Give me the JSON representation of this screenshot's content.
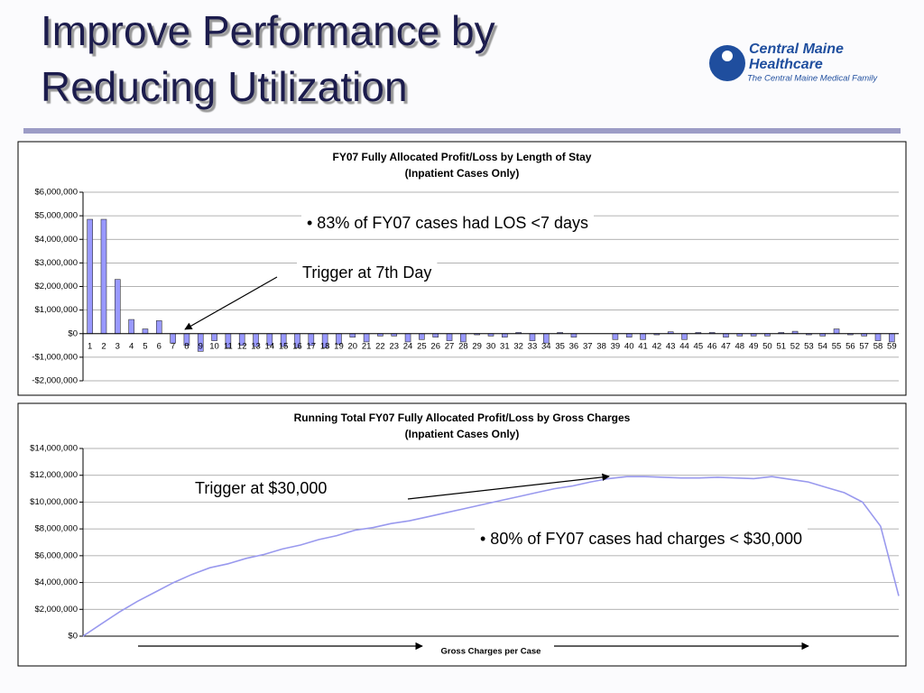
{
  "slide": {
    "title_lines": [
      "Improve Performance by",
      "Reducing Utilization"
    ],
    "logo": {
      "name_lines": [
        "Central Maine",
        "Healthcare"
      ],
      "tagline": "The Central Maine Medical Family"
    }
  },
  "chart_data": [
    {
      "type": "bar",
      "title": "FY07 Fully Allocated Profit/Loss by Length of Stay",
      "subtitle": "(Inpatient Cases Only)",
      "categories": [
        "1",
        "2",
        "3",
        "4",
        "5",
        "6",
        "7",
        "8",
        "9",
        "10",
        "11",
        "12",
        "13",
        "14",
        "15",
        "16",
        "17",
        "18",
        "19",
        "20",
        "21",
        "22",
        "23",
        "24",
        "25",
        "26",
        "27",
        "28",
        "29",
        "30",
        "31",
        "32",
        "33",
        "34",
        "35",
        "36",
        "37",
        "38",
        "39",
        "40",
        "41",
        "42",
        "43",
        "44",
        "45",
        "46",
        "47",
        "48",
        "49",
        "50",
        "51",
        "52",
        "53",
        "54",
        "55",
        "56",
        "57",
        "58",
        "59"
      ],
      "values": [
        4850000,
        4850000,
        2300000,
        600000,
        200000,
        550000,
        -400000,
        -500000,
        -750000,
        -300000,
        -600000,
        -500000,
        -550000,
        -500000,
        -550000,
        -600000,
        -500000,
        -600000,
        -450000,
        -150000,
        -350000,
        -100000,
        -100000,
        -350000,
        -250000,
        -150000,
        -300000,
        -350000,
        -50000,
        -100000,
        -150000,
        50000,
        -300000,
        -400000,
        50000,
        -150000,
        0,
        0,
        -250000,
        -150000,
        -250000,
        -50000,
        80000,
        -250000,
        50000,
        50000,
        -150000,
        -100000,
        -100000,
        -100000,
        50000,
        100000,
        -50000,
        -100000,
        200000,
        -50000,
        -100000,
        -300000,
        -350000
      ],
      "color": "#9999ff",
      "ylim": [
        -2000000,
        6000000
      ],
      "yticks": [
        {
          "value": -2000000,
          "label": "-$2,000,000"
        },
        {
          "value": -1000000,
          "label": "-$1,000,000"
        },
        {
          "value": 0,
          "label": "$0"
        },
        {
          "value": 1000000,
          "label": "$1,000,000"
        },
        {
          "value": 2000000,
          "label": "$2,000,000"
        },
        {
          "value": 3000000,
          "label": "$3,000,000"
        },
        {
          "value": 4000000,
          "label": "$4,000,000"
        },
        {
          "value": 5000000,
          "label": "$5,000,000"
        },
        {
          "value": 6000000,
          "label": "$6,000,000"
        }
      ],
      "grid": true,
      "annotations": [
        "• 83% of FY07 cases had LOS <7 days",
        "Trigger at 7th Day"
      ]
    },
    {
      "type": "line",
      "title": "Running Total FY07 Fully Allocated Profit/Loss by Gross Charges",
      "subtitle": "(Inpatient Cases Only)",
      "x_label": "Gross Charges per Case",
      "values": [
        0,
        900000,
        1800000,
        2600000,
        3300000,
        4000000,
        4600000,
        5100000,
        5400000,
        5800000,
        6100000,
        6500000,
        6800000,
        7200000,
        7500000,
        7900000,
        8100000,
        8400000,
        8600000,
        8900000,
        9200000,
        9500000,
        9800000,
        10100000,
        10400000,
        10700000,
        11000000,
        11200000,
        11500000,
        11750000,
        11900000,
        11900000,
        11850000,
        11800000,
        11800000,
        11850000,
        11800000,
        11750000,
        11900000,
        11700000,
        11500000,
        11100000,
        10700000,
        10000000,
        8200000,
        3000000
      ],
      "color": "#9999ee",
      "ylim": [
        0,
        14000000
      ],
      "yticks": [
        {
          "value": 0,
          "label": "$0"
        },
        {
          "value": 2000000,
          "label": "$2,000,000"
        },
        {
          "value": 4000000,
          "label": "$4,000,000"
        },
        {
          "value": 6000000,
          "label": "$6,000,000"
        },
        {
          "value": 8000000,
          "label": "$8,000,000"
        },
        {
          "value": 10000000,
          "label": "$10,000,000"
        },
        {
          "value": 12000000,
          "label": "$12,000,000"
        },
        {
          "value": 14000000,
          "label": "$14,000,000"
        }
      ],
      "grid": true,
      "annotations": [
        "Trigger at $30,000",
        "• 80% of FY07 cases had charges < $30,000"
      ]
    }
  ]
}
